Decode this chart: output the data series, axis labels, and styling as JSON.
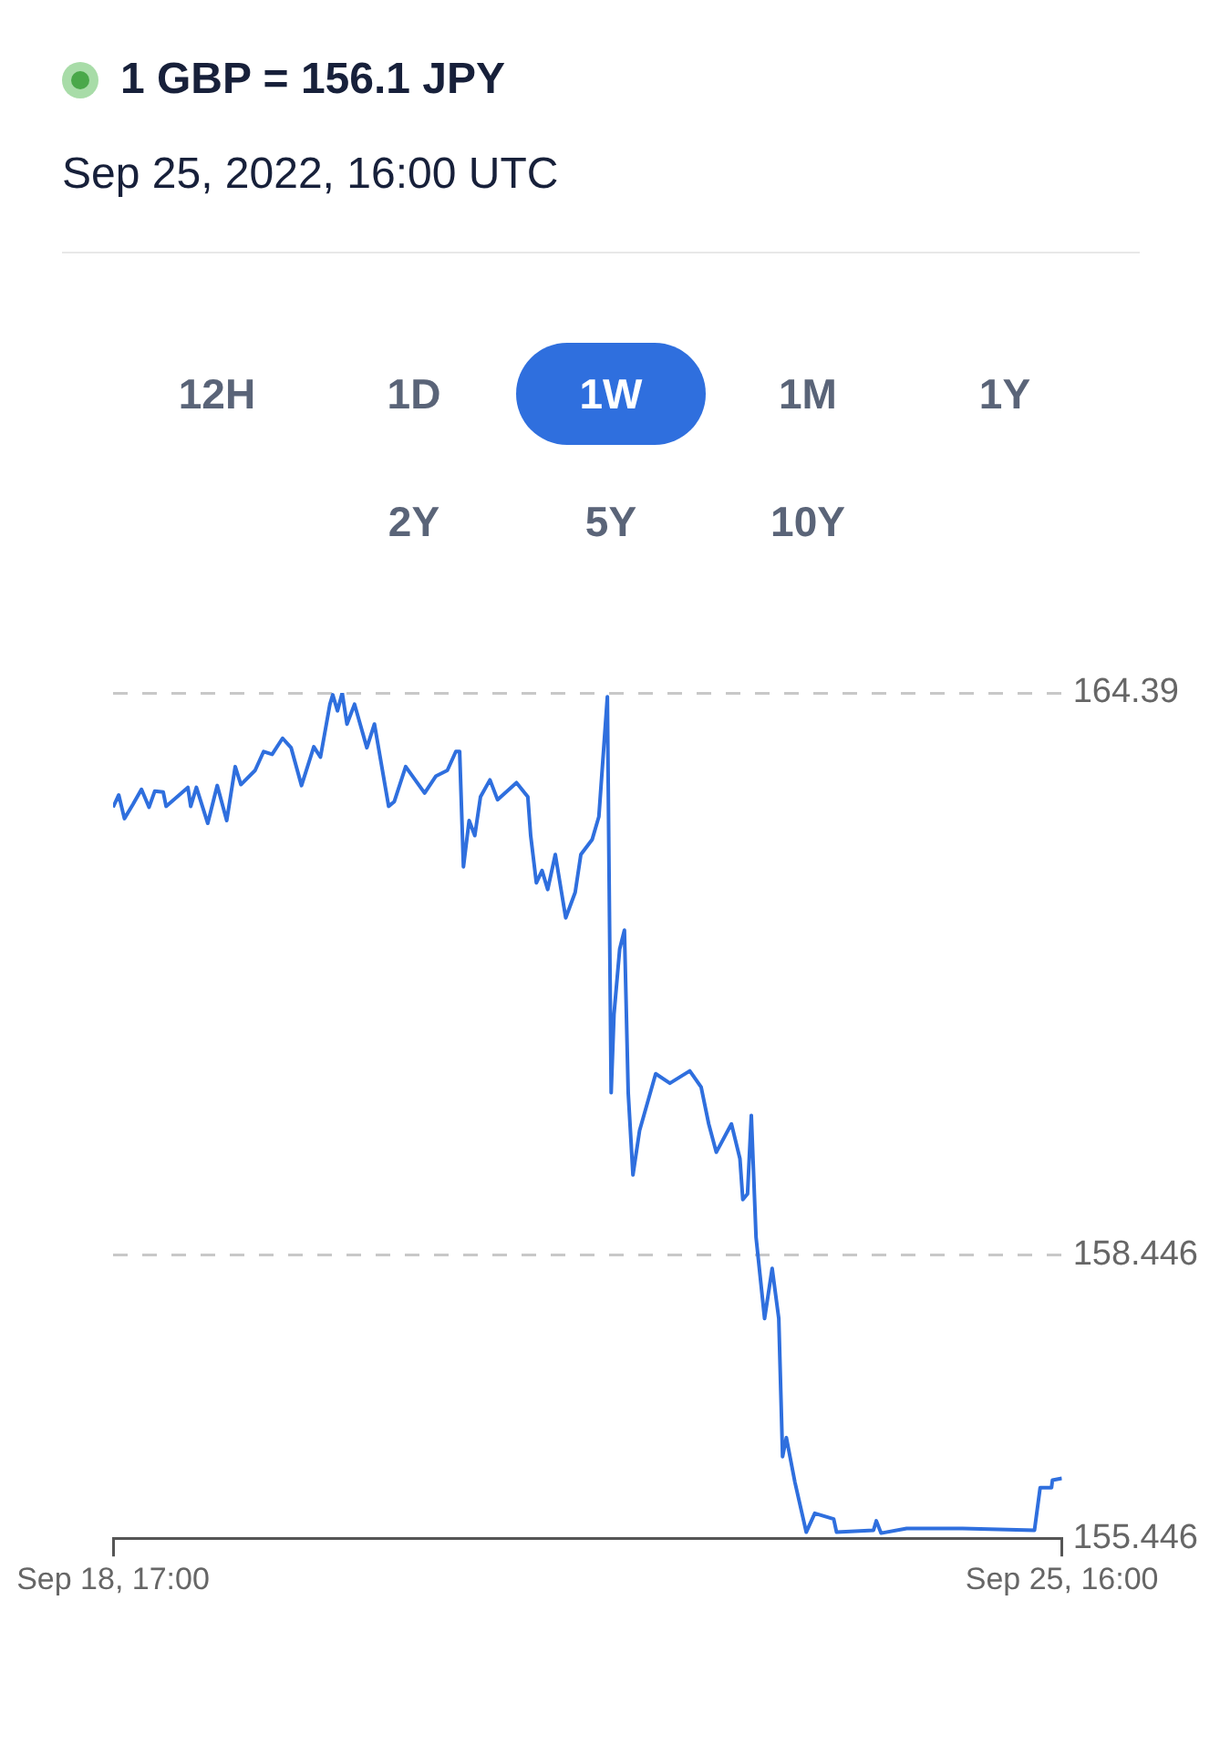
{
  "chart_data": {
    "type": "line",
    "title": "1 GBP = 156.1 JPY",
    "subtitle": "Sep 25, 2022, 16:00 UTC",
    "annotations": [
      "12H",
      "1D",
      "1W",
      "1M",
      "1Y",
      "2Y",
      "5Y",
      "10Y"
    ],
    "x": [
      "2022-09-18T17:00",
      "2022-09-18T18:00",
      "2022-09-18T19:00",
      "2022-09-18T20:30",
      "2022-09-18T22:00",
      "2022-09-18T23:20",
      "2022-09-19T00:20",
      "2022-09-19T01:50",
      "2022-09-19T02:20",
      "2022-09-19T06:10",
      "2022-09-19T06:40",
      "2022-09-19T07:40",
      "2022-09-19T09:40",
      "2022-09-19T11:20",
      "2022-09-19T13:00",
      "2022-09-19T14:30",
      "2022-09-19T15:30",
      "2022-09-19T18:00",
      "2022-09-19T19:30",
      "2022-09-19T21:00",
      "2022-09-19T22:50",
      "2022-09-20T00:20",
      "2022-09-20T02:10",
      "2022-09-20T04:20",
      "2022-09-20T05:30",
      "2022-09-20T07:10",
      "2022-09-20T07:40",
      "2022-09-20T08:30",
      "2022-09-20T09:20",
      "2022-09-20T10:10",
      "2022-09-20T11:30",
      "2022-09-20T13:40",
      "2022-09-20T15:00",
      "2022-09-20T17:30",
      "2022-09-20T18:30",
      "2022-09-20T20:30",
      "2022-09-20T23:50",
      "2022-09-21T01:50",
      "2022-09-21T03:50",
      "2022-09-21T05:20",
      "2022-09-21T06:00",
      "2022-09-21T06:40",
      "2022-09-21T07:40",
      "2022-09-21T08:40",
      "2022-09-21T09:40",
      "2022-09-21T11:20",
      "2022-09-21T12:40",
      "2022-09-21T16:00",
      "2022-09-21T18:00",
      "2022-09-21T18:30",
      "2022-09-21T19:30",
      "2022-09-21T20:30",
      "2022-09-21T21:30",
      "2022-09-21T22:50",
      "2022-09-22T00:40",
      "2022-09-22T02:20",
      "2022-09-22T03:20",
      "2022-09-22T05:20",
      "2022-09-22T06:30",
      "2022-09-22T08:00",
      "2022-09-22T08:40",
      "2022-09-22T09:10",
      "2022-09-22T10:10",
      "2022-09-22T11:00",
      "2022-09-22T11:40",
      "2022-09-22T12:30",
      "2022-09-22T13:40",
      "2022-09-22T16:30",
      "2022-09-22T19:00",
      "2022-09-22T22:30",
      "2022-09-23T00:30",
      "2022-09-23T01:50",
      "2022-09-23T03:10",
      "2022-09-23T05:50",
      "2022-09-23T07:20",
      "2022-09-23T07:50",
      "2022-09-23T08:40",
      "2022-09-23T09:20",
      "2022-09-23T10:10",
      "2022-09-23T11:40",
      "2022-09-23T13:00",
      "2022-09-23T14:10",
      "2022-09-23T14:50",
      "2022-09-23T15:30",
      "2022-09-23T17:00",
      "2022-09-23T19:00",
      "2022-09-23T20:30",
      "2022-09-23T23:50",
      "2022-09-24T00:20",
      "2022-09-24T06:50",
      "2022-09-24T07:20",
      "2022-09-24T08:10",
      "2022-09-24T12:40",
      "2022-09-24T22:30",
      "2022-09-25T11:10",
      "2022-09-25T12:10",
      "2022-09-25T14:10",
      "2022-09-25T14:20",
      "2022-09-25T16:00"
    ],
    "series": [
      {
        "color": "#2f6fde",
        "values": [
          163.18,
          163.31,
          163.06,
          163.21,
          163.37,
          163.18,
          163.35,
          163.34,
          163.19,
          163.39,
          163.19,
          163.39,
          163.01,
          163.41,
          163.04,
          163.61,
          163.42,
          163.57,
          163.77,
          163.74,
          163.91,
          163.81,
          163.41,
          163.82,
          163.71,
          164.27,
          164.37,
          164.2,
          164.39,
          164.06,
          164.27,
          163.81,
          164.06,
          163.19,
          163.24,
          163.61,
          163.33,
          163.51,
          163.57,
          163.77,
          163.77,
          162.55,
          163.04,
          162.88,
          163.29,
          163.47,
          163.26,
          163.44,
          163.29,
          162.88,
          162.38,
          162.51,
          162.31,
          162.68,
          162.01,
          162.28,
          162.68,
          162.84,
          163.08,
          164.35,
          160.16,
          160.99,
          161.68,
          161.88,
          160.16,
          159.29,
          159.76,
          160.36,
          160.26,
          160.39,
          160.22,
          159.83,
          159.53,
          159.83,
          159.46,
          159.03,
          159.09,
          159.92,
          158.63,
          157.77,
          158.3,
          157.77,
          156.31,
          156.51,
          156.04,
          155.51,
          155.71,
          155.65,
          155.51,
          155.53,
          155.63,
          155.5,
          155.55,
          155.55,
          155.53,
          155.98,
          155.98,
          156.06,
          156.08
        ]
      }
    ],
    "xlim": [
      "2022-09-18T17:00",
      "2022-09-25T16:00"
    ],
    "xticks": [
      {
        "value": "2022-09-18T17:00",
        "label": "Sep 18, 17:00"
      },
      {
        "value": "2022-09-25T16:00",
        "label": "Sep 25, 16:00"
      }
    ],
    "ylim": [
      155.446,
      164.39
    ],
    "yticks": [
      155.446,
      158.446,
      164.39
    ],
    "grid": "y"
  }
}
